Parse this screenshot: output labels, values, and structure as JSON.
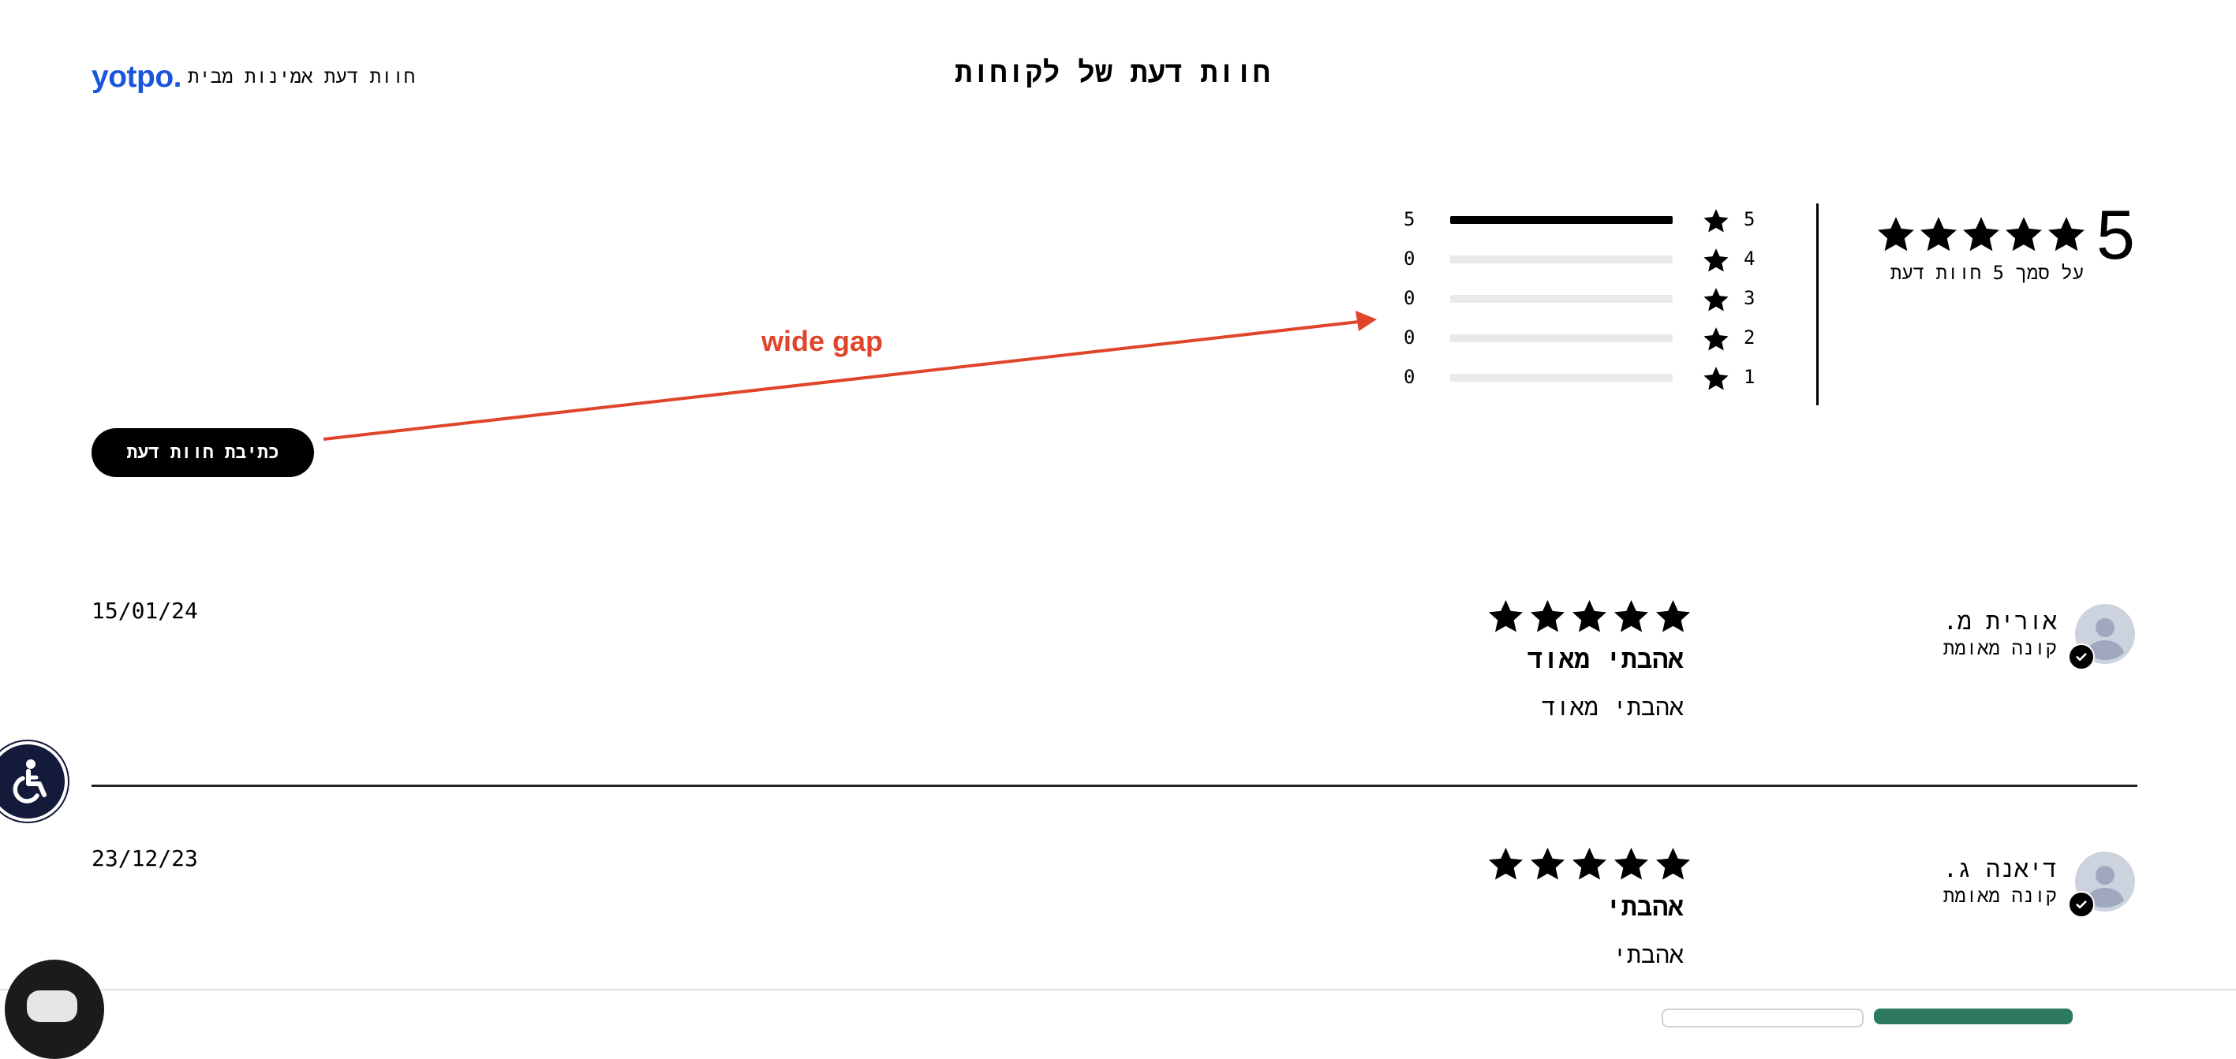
{
  "header": {
    "brand_logo": "yotpo.",
    "brand_label": "חוות דעת אמינות מבית",
    "title": "חוות דעת של לקוחות"
  },
  "summary": {
    "average": "5",
    "average_stars": 5,
    "based_on": "על סמך 5 חוות דעת",
    "distribution": [
      {
        "stars": "5",
        "count": "5",
        "fraction": 1.0
      },
      {
        "stars": "4",
        "count": "0",
        "fraction": 0
      },
      {
        "stars": "3",
        "count": "0",
        "fraction": 0
      },
      {
        "stars": "2",
        "count": "0",
        "fraction": 0
      },
      {
        "stars": "1",
        "count": "0",
        "fraction": 0
      }
    ]
  },
  "write_review_label": "כתיבת חוות דעת",
  "annotation": {
    "text": "wide gap",
    "color": "#e0452a"
  },
  "reviews": [
    {
      "date": "15/01/24",
      "name": "אורית מ.",
      "verified": "קונה מאומת",
      "rating": 5,
      "title": "אהבתי מאוד",
      "body": "אהבתי מאוד"
    },
    {
      "date": "23/12/23",
      "name": "דיאנה ג.",
      "verified": "קונה מאומת",
      "rating": 5,
      "title": "אהבתי",
      "body": "אהבתי"
    }
  ],
  "colors": {
    "brand": "#1a56db",
    "accessibility": "#131a3a",
    "accept_green": "#2d7a5f"
  },
  "icons": {
    "star": "star-icon",
    "avatar": "user-avatar-icon",
    "verified": "check-badge-icon",
    "accessibility": "wheelchair-icon"
  }
}
